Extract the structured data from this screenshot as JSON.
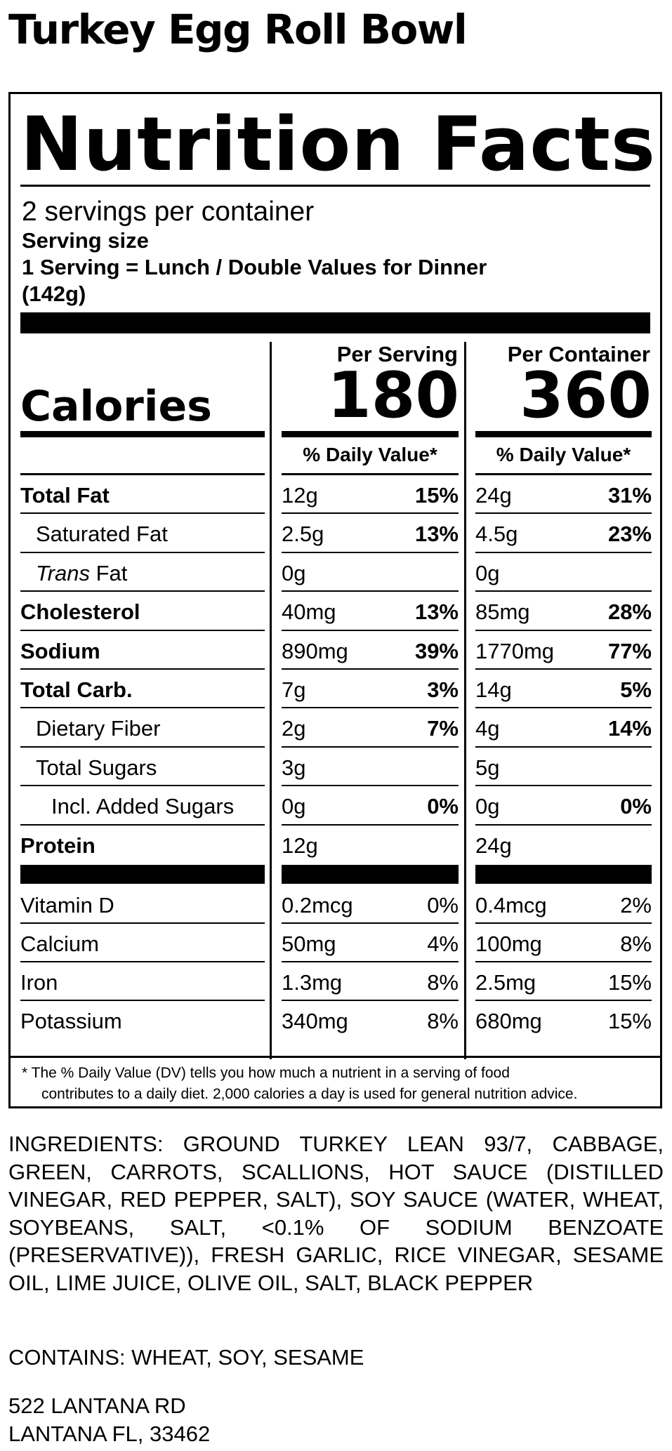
{
  "product": {
    "title": "Turkey Egg Roll Bowl"
  },
  "label": {
    "heading": "Nutrition Facts",
    "servings_per_container": "2 servings per container",
    "serving_size_label": "Serving size",
    "serving_size_desc": "1 Serving = Lunch / Double Values for Dinner",
    "serving_size_weight": "(142g)",
    "columns": {
      "per_serving": "Per Serving",
      "per_container": "Per Container"
    },
    "calories": {
      "label": "Calories",
      "per_serving": "180",
      "per_container": "360"
    },
    "dv_header": "% Daily Value*",
    "nutrients": [
      {
        "name": "Total Fat",
        "style": "bold",
        "s_amt": "12g",
        "s_dv": "15%",
        "c_amt": "24g",
        "c_dv": "31%"
      },
      {
        "name": "Saturated Fat",
        "style": "sub",
        "s_amt": "2.5g",
        "s_dv": "13%",
        "c_amt": "4.5g",
        "c_dv": "23%"
      },
      {
        "name_italic": "Trans",
        "name": " Fat",
        "style": "sub",
        "s_amt": "0g",
        "s_dv": "",
        "c_amt": "0g",
        "c_dv": ""
      },
      {
        "name": "Cholesterol",
        "style": "bold",
        "s_amt": "40mg",
        "s_dv": "13%",
        "c_amt": "85mg",
        "c_dv": "28%"
      },
      {
        "name": "Sodium",
        "style": "bold",
        "s_amt": "890mg",
        "s_dv": "39%",
        "c_amt": "1770mg",
        "c_dv": "77%"
      },
      {
        "name": "Total Carb.",
        "style": "bold",
        "s_amt": "7g",
        "s_dv": "3%",
        "c_amt": "14g",
        "c_dv": "5%"
      },
      {
        "name": "Dietary Fiber",
        "style": "sub",
        "s_amt": "2g",
        "s_dv": "7%",
        "c_amt": "4g",
        "c_dv": "14%"
      },
      {
        "name": "Total Sugars",
        "style": "sub",
        "s_amt": "3g",
        "s_dv": "",
        "c_amt": "5g",
        "c_dv": ""
      },
      {
        "name": "Incl. Added Sugars",
        "style": "subsub",
        "s_amt": "0g",
        "s_dv": "0%",
        "c_amt": "0g",
        "c_dv": "0%"
      },
      {
        "name": "Protein",
        "style": "bold",
        "s_amt": "12g",
        "s_dv": "",
        "c_amt": "24g",
        "c_dv": ""
      }
    ],
    "vitamins": [
      {
        "name": "Vitamin D",
        "s_amt": "0.2mcg",
        "s_dv": "0%",
        "c_amt": "0.4mcg",
        "c_dv": "2%"
      },
      {
        "name": "Calcium",
        "s_amt": "50mg",
        "s_dv": "4%",
        "c_amt": "100mg",
        "c_dv": "8%"
      },
      {
        "name": "Iron",
        "s_amt": "1.3mg",
        "s_dv": "8%",
        "c_amt": "2.5mg",
        "c_dv": "15%"
      },
      {
        "name": "Potassium",
        "s_amt": "340mg",
        "s_dv": "8%",
        "c_amt": "680mg",
        "c_dv": "15%"
      }
    ],
    "footnote_line1": "* The % Daily Value (DV) tells you how much a nutrient in a serving of food",
    "footnote_line2": "contributes to a daily diet. 2,000 calories a day is used for general nutrition advice."
  },
  "ingredients": "INGREDIENTS: GROUND TURKEY LEAN 93/7, CABBAGE, GREEN, CARROTS, SCALLIONS, HOT SAUCE (DISTILLED VINEGAR, RED PEPPER, SALT), SOY SAUCE (WATER, WHEAT, SOYBEANS, SALT, <0.1% OF SODIUM BENZOATE (PRESERVATIVE)), FRESH GARLIC, RICE VINEGAR, SESAME OIL, LIME JUICE, OLIVE OIL, SALT, BLACK PEPPER",
  "contains": "CONTAINS: WHEAT, SOY, SESAME",
  "address": {
    "line1": "522 LANTANA RD",
    "line2": "LANTANA FL, 33462"
  }
}
